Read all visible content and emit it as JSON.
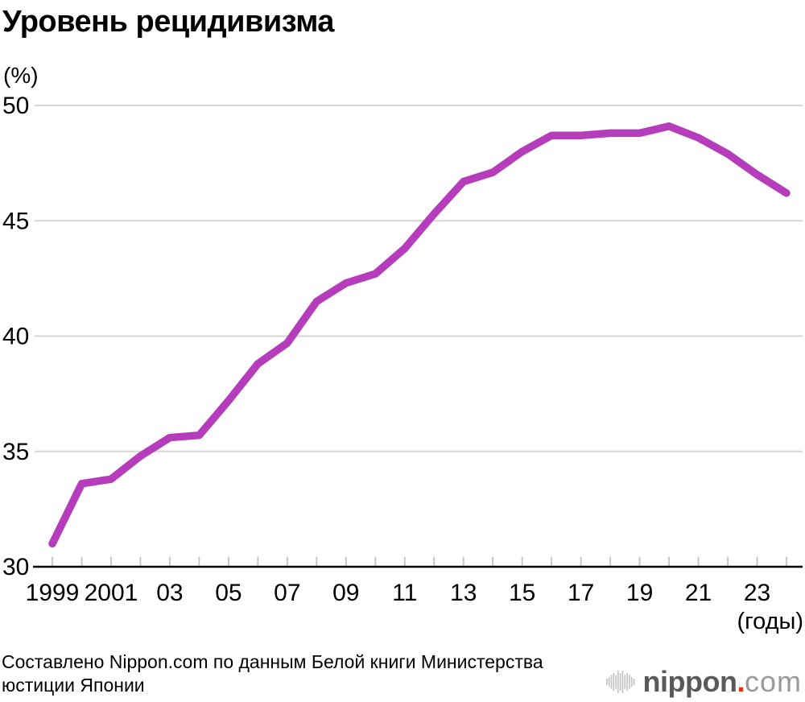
{
  "title": "Уровень рецидивизма",
  "y_axis": {
    "unit_label": "(%)",
    "ticks": [
      50,
      45,
      40,
      35,
      30
    ]
  },
  "x_axis": {
    "tick_labels": [
      "1999",
      "2001",
      "03",
      "05",
      "07",
      "09",
      "11",
      "13",
      "15",
      "17",
      "19",
      "21",
      "23"
    ],
    "suffix_label": "(годы)"
  },
  "source": {
    "line1": "Составлено Nippon.com по данным Белой книги Министерства",
    "line2": "юстиции Японии"
  },
  "logo": {
    "name": "nippon",
    "dot": ".",
    "tld": "com"
  },
  "colors": {
    "line": "#b53cba",
    "grid": "#d6d6d6",
    "tick": "#c3c3c3",
    "axis": "#000000",
    "text": "#000000",
    "logo_dark": "#595959",
    "logo_light": "#9a9a9a",
    "logo_dot": "#e8321e",
    "logo_bars": "#c4c4c4"
  },
  "chart_data": {
    "type": "line",
    "title": "Уровень рецидивизма",
    "ylabel": "(%)",
    "xlabel": "(годы)",
    "x": [
      1999,
      2000,
      2001,
      2002,
      2003,
      2004,
      2005,
      2006,
      2007,
      2008,
      2009,
      2010,
      2011,
      2012,
      2013,
      2014,
      2015,
      2016,
      2017,
      2018,
      2019,
      2020,
      2021,
      2022,
      2023,
      2024
    ],
    "values": [
      31.0,
      33.6,
      33.8,
      34.8,
      35.6,
      35.7,
      37.2,
      38.8,
      39.7,
      41.5,
      42.3,
      42.7,
      43.8,
      45.3,
      46.7,
      47.1,
      48.0,
      48.7,
      48.7,
      48.8,
      48.8,
      49.1,
      48.6,
      47.9,
      47.0,
      46.2
    ],
    "ylim": [
      30,
      50
    ],
    "xlim": [
      1999,
      2024
    ],
    "y_gridlines": [
      35,
      40,
      45,
      50
    ],
    "grid": true,
    "legend": "none"
  }
}
